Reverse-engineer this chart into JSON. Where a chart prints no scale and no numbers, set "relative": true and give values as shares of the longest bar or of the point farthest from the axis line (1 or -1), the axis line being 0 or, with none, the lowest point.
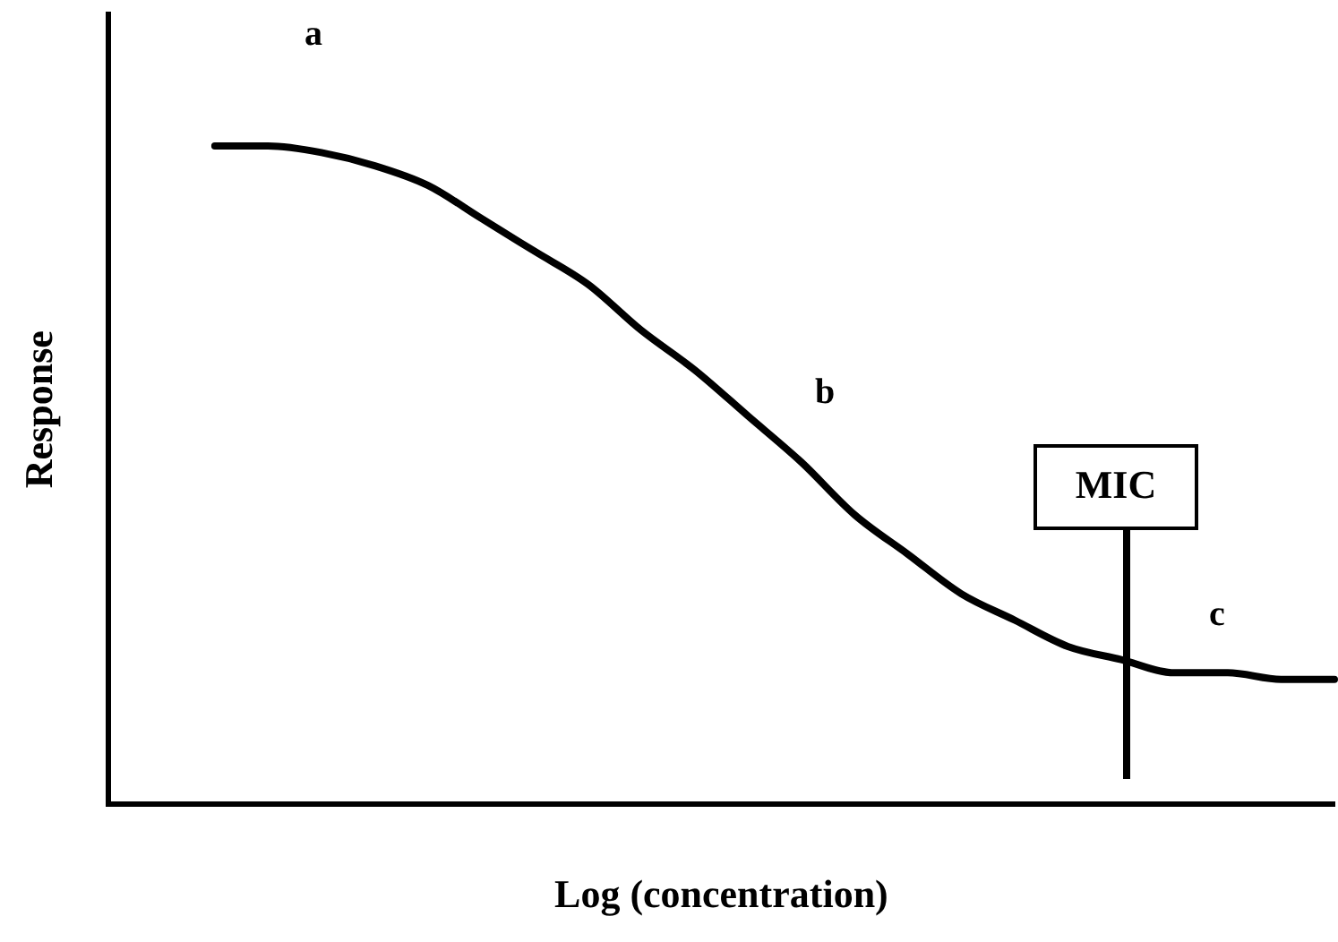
{
  "chart_data": {
    "type": "line",
    "relative": true,
    "xlabel": "Log (concentration)",
    "ylabel": "Response",
    "categories": [
      null,
      null,
      null,
      null,
      null,
      null,
      null,
      null,
      null,
      null,
      null,
      null,
      null,
      null,
      null,
      null,
      null,
      null,
      null,
      null,
      null,
      null,
      null,
      null
    ],
    "series": [
      {
        "color": "#000000",
        "values": [
          null,
          null,
          1.0,
          1.0,
          0.99,
          0.97,
          0.94,
          0.89,
          0.84,
          0.79,
          0.72,
          0.66,
          0.59,
          0.52,
          0.44,
          0.38,
          0.32,
          0.28,
          0.24,
          0.22,
          0.2,
          0.2,
          0.19,
          0.19
        ]
      }
    ],
    "annotations": [
      "a",
      "b",
      "c",
      "MIC"
    ],
    "marker": "none",
    "line_style": "solid",
    "grid": false,
    "legend": false
  }
}
